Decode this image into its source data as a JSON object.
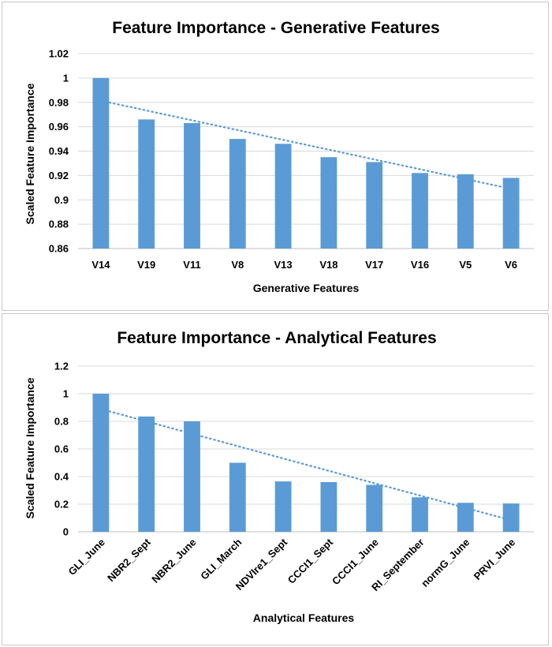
{
  "chart_data": [
    {
      "type": "bar",
      "title": "Feature Importance - Generative Features",
      "xlabel": "Generative Features",
      "ylabel": "Scaled Feature Importance",
      "categories": [
        "V14",
        "V19",
        "V11",
        "V8",
        "V13",
        "V18",
        "V17",
        "V16",
        "V5",
        "V6"
      ],
      "values": [
        1.0,
        0.966,
        0.963,
        0.95,
        0.946,
        0.935,
        0.931,
        0.922,
        0.921,
        0.918
      ],
      "ylim": [
        0.86,
        1.02
      ],
      "yticks": [
        "0.86",
        "0.88",
        "0.9",
        "0.92",
        "0.94",
        "0.96",
        "0.98",
        "1",
        "1.02"
      ],
      "trendline": {
        "style": "dotted",
        "linear": true
      },
      "grid": true,
      "legend": "none",
      "bar_color": "#5b9bd5"
    },
    {
      "type": "bar",
      "title": "Feature Importance - Analytical Features",
      "xlabel": "Analytical Features",
      "ylabel": "Scaled Feature Importance",
      "categories": [
        "GLI_June",
        "NBR2_Sept",
        "NBR2_June",
        "GLI_March",
        "NDVIre1_Sept",
        "CCCI1_Sept",
        "CCCI1_June",
        "RI_September",
        "normG_June",
        "PRVI_June"
      ],
      "values": [
        1.0,
        0.835,
        0.8,
        0.5,
        0.365,
        0.36,
        0.34,
        0.25,
        0.21,
        0.205
      ],
      "ylim": [
        0,
        1.2
      ],
      "yticks": [
        "0",
        "0.2",
        "0.4",
        "0.6",
        "0.8",
        "1",
        "1.2"
      ],
      "trendline": {
        "style": "dotted",
        "linear": true
      },
      "grid": true,
      "legend": "none",
      "bar_color": "#5b9bd5"
    }
  ]
}
